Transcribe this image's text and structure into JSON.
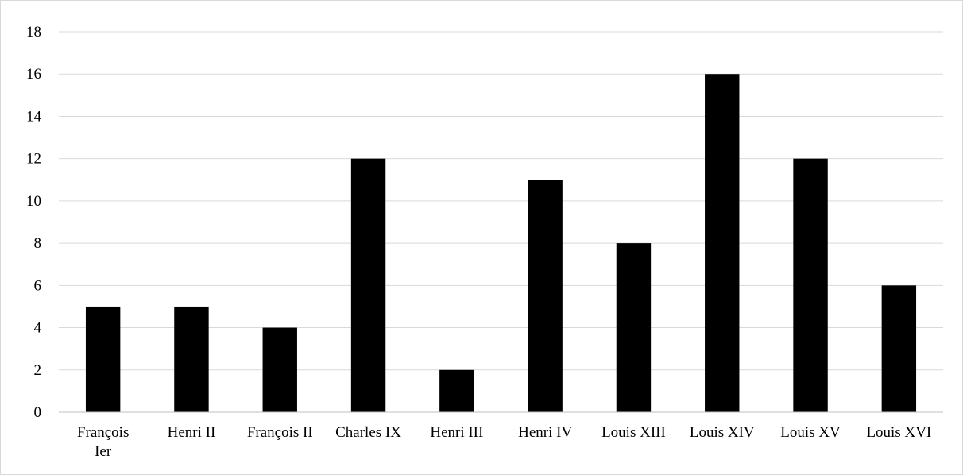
{
  "chart_data": {
    "type": "bar",
    "categories": [
      [
        "François",
        "Ier"
      ],
      [
        "Henri II"
      ],
      [
        "François II"
      ],
      [
        "Charles IX"
      ],
      [
        "Henri III"
      ],
      [
        "Henri IV"
      ],
      [
        "Louis XIII"
      ],
      [
        "Louis XIV"
      ],
      [
        "Louis XV"
      ],
      [
        "Louis XVI"
      ]
    ],
    "values": [
      5,
      5,
      4,
      12,
      2,
      11,
      8,
      16,
      12,
      6
    ],
    "ylim": [
      0,
      18
    ],
    "yticks": [
      0,
      2,
      4,
      6,
      8,
      10,
      12,
      14,
      16,
      18
    ],
    "grid": true,
    "legend": "none",
    "colors": {
      "bar": "#000000",
      "grid": "#d9d9d9",
      "axis": "#bfbfbf"
    }
  }
}
